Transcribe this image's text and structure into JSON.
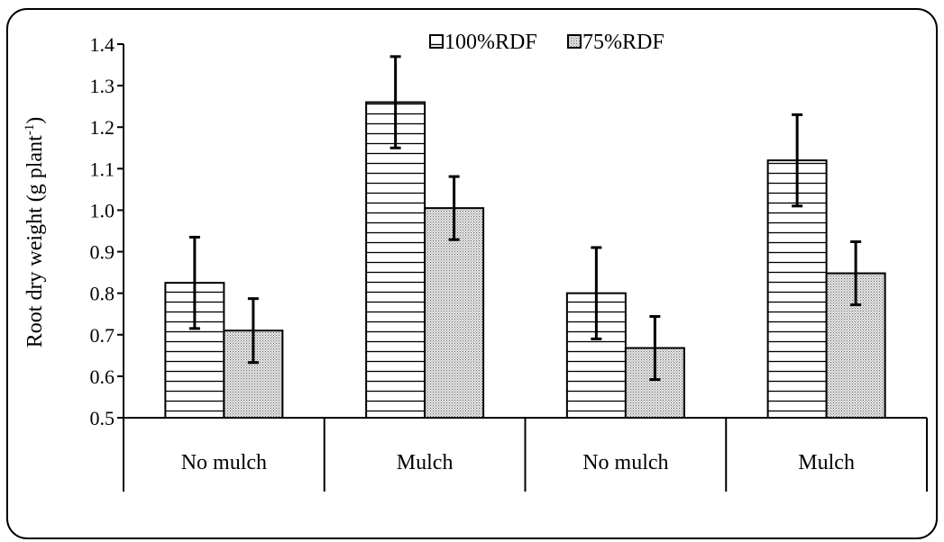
{
  "chart_data": {
    "type": "bar",
    "ylabel": "Root dry weight (g plant",
    "ylabel_superscript": "-1",
    "ylabel_suffix": ")",
    "ylim": [
      0.5,
      1.4
    ],
    "yticks": [
      "0.5",
      "0.6",
      "0.7",
      "0.8",
      "0.9",
      "1.0",
      "1.1",
      "1.2",
      "1.3",
      "1.4"
    ],
    "categories": [
      "No mulch",
      "Mulch",
      "No mulch",
      "Mulch"
    ],
    "series": [
      {
        "name": "100%RDF",
        "pattern": "horizontal-lines",
        "values": [
          0.825,
          1.26,
          0.8,
          1.12
        ],
        "errors": [
          0.11,
          0.11,
          0.11,
          0.11
        ]
      },
      {
        "name": "75%RDF",
        "pattern": "dots",
        "values": [
          0.71,
          1.005,
          0.668,
          0.848
        ],
        "errors": [
          0.077,
          0.076,
          0.076,
          0.076
        ]
      }
    ],
    "legend_position": "top-center",
    "grid": false
  }
}
